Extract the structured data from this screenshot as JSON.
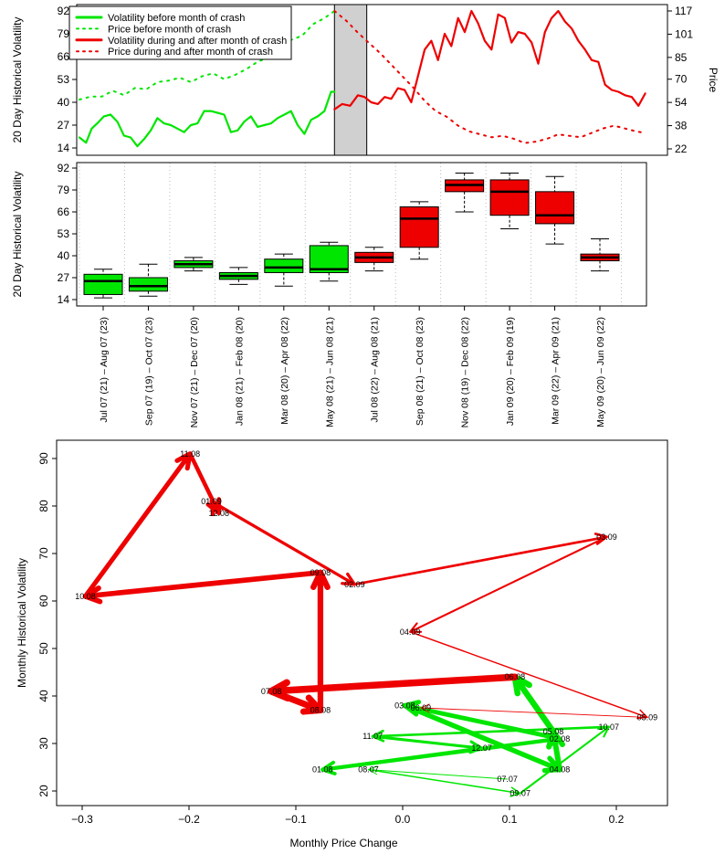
{
  "colors": {
    "before": "#00e600",
    "after": "#ee0000",
    "axis": "#000000",
    "grid": "#bbbbbb",
    "shade": "#d0d0d0"
  },
  "chart_data": [
    {
      "type": "line",
      "ylabel": "20 Day Historical Volatility",
      "y2label": "Price",
      "ylim": [
        14,
        92
      ],
      "y_ticks": [
        14,
        27,
        40,
        53,
        66,
        79,
        92
      ],
      "y2lim": [
        22,
        117
      ],
      "y2_ticks": [
        22,
        38,
        54,
        70,
        85,
        101,
        117
      ],
      "x_range_days": [
        0,
        510
      ],
      "crash_window": [
        229,
        258
      ],
      "legend_position": "top-left",
      "legend": [
        {
          "label": "Volatility before month of crash",
          "style": "solid",
          "color": "before"
        },
        {
          "label": "Price before month of crash",
          "style": "dotted",
          "color": "before"
        },
        {
          "label": "Volatility during and after month of crash",
          "style": "solid",
          "color": "after"
        },
        {
          "label": "Price during and after month of crash",
          "style": "dotted",
          "color": "after"
        }
      ],
      "series": [
        {
          "name": "Volatility before month of crash",
          "style": "solid",
          "color": "before",
          "x": [
            0,
            6,
            11,
            16,
            22,
            28,
            34,
            40,
            46,
            52,
            58,
            64,
            70,
            76,
            82,
            88,
            94,
            100,
            106,
            112,
            118,
            124,
            130,
            136,
            142,
            148,
            154,
            160,
            166,
            172,
            178,
            184,
            190,
            196,
            202,
            208,
            214,
            220,
            226,
            229
          ],
          "y": [
            20,
            17,
            25,
            28,
            32,
            33,
            29,
            21,
            20,
            15,
            19,
            24,
            31,
            28,
            27,
            25,
            23,
            27,
            28,
            35,
            35,
            34,
            33,
            23,
            24,
            29,
            32,
            26,
            27,
            28,
            31,
            33,
            35,
            27,
            22,
            30,
            32,
            35,
            46,
            46
          ]
        },
        {
          "name": "Price before month of crash",
          "style": "dotted",
          "color": "before",
          "x": [
            0,
            10,
            20,
            30,
            40,
            50,
            60,
            70,
            80,
            90,
            100,
            110,
            120,
            130,
            140,
            150,
            160,
            170,
            180,
            190,
            200,
            210,
            220,
            229
          ],
          "y": [
            56,
            58,
            58,
            62,
            59,
            64,
            63,
            68,
            69,
            71,
            68,
            72,
            74,
            70,
            73,
            77,
            82,
            85,
            92,
            97,
            100,
            108,
            112,
            117
          ]
        },
        {
          "name": "Volatility during and after month of crash",
          "style": "solid",
          "color": "after",
          "x": [
            229,
            236,
            243,
            250,
            256,
            262,
            268,
            274,
            280,
            286,
            292,
            298,
            304,
            310,
            316,
            322,
            328,
            334,
            340,
            346,
            352,
            358,
            364,
            370,
            376,
            382,
            388,
            394,
            400,
            406,
            412,
            418,
            424,
            430,
            436,
            442,
            448,
            454,
            460,
            466,
            472,
            478,
            484,
            490,
            496,
            502,
            508
          ],
          "y": [
            36,
            39,
            38,
            44,
            43,
            40,
            39,
            43,
            42,
            48,
            47,
            40,
            55,
            70,
            75,
            64,
            79,
            72,
            88,
            80,
            92,
            85,
            75,
            70,
            90,
            88,
            74,
            80,
            79,
            74,
            62,
            80,
            88,
            92,
            86,
            82,
            75,
            70,
            64,
            63,
            50,
            47,
            46,
            44,
            43,
            38,
            45
          ]
        },
        {
          "name": "Price during and after month of crash",
          "style": "dotted",
          "color": "after",
          "x": [
            229,
            240,
            250,
            260,
            270,
            280,
            290,
            300,
            310,
            320,
            330,
            340,
            350,
            360,
            370,
            380,
            390,
            400,
            410,
            420,
            430,
            440,
            450,
            460,
            470,
            480,
            490,
            500,
            508
          ],
          "y": [
            117,
            110,
            102,
            95,
            88,
            80,
            72,
            64,
            55,
            48,
            44,
            38,
            34,
            32,
            30,
            31,
            29,
            26,
            27,
            29,
            32,
            31,
            30,
            33,
            36,
            38,
            36,
            34,
            33
          ]
        }
      ]
    },
    {
      "type": "boxplot",
      "ylabel": "20 Day Historical Volatility",
      "ylim": [
        14,
        92
      ],
      "y_ticks": [
        14,
        27,
        40,
        53,
        66,
        79,
        92
      ],
      "categories": [
        "Jul 07 (21) – Aug 07 (23)",
        "Sep 07 (19) – Oct 07 (23)",
        "Nov 07 (21) – Dec 07 (20)",
        "Jan 08 (21) – Feb 08 (20)",
        "Mar 08 (20) – Apr 08 (22)",
        "May 08 (21) – Jun 08 (21)",
        "Jul 08 (22) – Aug 08 (21)",
        "Sep 08 (21) – Oct 08 (23)",
        "Nov 08 (19) – Dec 08 (22)",
        "Jan 09 (20) – Feb 09 (19)",
        "Mar 09 (22) – Apr 09 (21)",
        "May 09 (20) – Jun 09 (22)"
      ],
      "boxes": [
        {
          "min": 15,
          "q1": 17,
          "median": 25,
          "q3": 29,
          "max": 32,
          "color": "before"
        },
        {
          "min": 16,
          "q1": 19,
          "median": 22,
          "q3": 27,
          "max": 35,
          "color": "before"
        },
        {
          "min": 31,
          "q1": 33,
          "median": 35,
          "q3": 37,
          "max": 39,
          "color": "before"
        },
        {
          "min": 23,
          "q1": 26,
          "median": 28,
          "q3": 30,
          "max": 33,
          "color": "before"
        },
        {
          "min": 22,
          "q1": 30,
          "median": 33,
          "q3": 38,
          "max": 41,
          "color": "before"
        },
        {
          "min": 25,
          "q1": 30,
          "median": 32,
          "q3": 46,
          "max": 48,
          "color": "before"
        },
        {
          "min": 31,
          "q1": 36,
          "median": 39,
          "q3": 42,
          "max": 45,
          "color": "after"
        },
        {
          "min": 38,
          "q1": 45,
          "median": 62,
          "q3": 69,
          "max": 72,
          "color": "after"
        },
        {
          "min": 66,
          "q1": 78,
          "median": 82,
          "q3": 85,
          "max": 89,
          "color": "after"
        },
        {
          "min": 56,
          "q1": 64,
          "median": 78,
          "q3": 85,
          "max": 89,
          "color": "after"
        },
        {
          "min": 47,
          "q1": 59,
          "median": 64,
          "q3": 78,
          "max": 87,
          "color": "after"
        },
        {
          "min": 31,
          "q1": 37,
          "median": 39,
          "q3": 41,
          "max": 50,
          "color": "after"
        }
      ]
    },
    {
      "type": "scatter",
      "xlabel": "Monthly Price Change",
      "ylabel": "Monthly Historical Volatility",
      "xlim": [
        -0.32,
        0.25
      ],
      "ylim": [
        18,
        93
      ],
      "x_ticks": [
        -0.3,
        -0.2,
        -0.1,
        0.0,
        0.1,
        0.2
      ],
      "x_tick_labels": [
        "−0.3",
        "−0.2",
        "−0.1",
        "0.0",
        "0.1",
        "0.2"
      ],
      "y_ticks": [
        20,
        30,
        40,
        50,
        60,
        70,
        80,
        90
      ],
      "points": [
        {
          "label": "07.07",
          "x": 0.098,
          "y": 22.5
        },
        {
          "label": "08.07",
          "x": -0.032,
          "y": 24.5
        },
        {
          "label": "09.07",
          "x": 0.11,
          "y": 19.5
        },
        {
          "label": "10.07",
          "x": 0.193,
          "y": 33.5
        },
        {
          "label": "11.07",
          "x": -0.028,
          "y": 31.5
        },
        {
          "label": "12.07",
          "x": 0.074,
          "y": 29.0
        },
        {
          "label": "01.08",
          "x": -0.075,
          "y": 24.5
        },
        {
          "label": "02.08",
          "x": 0.147,
          "y": 31.0
        },
        {
          "label": "03.08",
          "x": 0.002,
          "y": 38.0
        },
        {
          "label": "04.08",
          "x": 0.147,
          "y": 24.5
        },
        {
          "label": "05.08",
          "x": 0.141,
          "y": 32.5
        },
        {
          "label": "06.08",
          "x": 0.105,
          "y": 44.0
        },
        {
          "label": "07.08",
          "x": -0.123,
          "y": 41.0
        },
        {
          "label": "08.08",
          "x": -0.077,
          "y": 37.0
        },
        {
          "label": "09.08",
          "x": -0.077,
          "y": 66.0
        },
        {
          "label": "10.08",
          "x": -0.297,
          "y": 61.0
        },
        {
          "label": "11.08",
          "x": -0.199,
          "y": 91.0
        },
        {
          "label": "12.08",
          "x": -0.172,
          "y": 78.5
        },
        {
          "label": "01.09",
          "x": -0.179,
          "y": 81.0
        },
        {
          "label": "02.09",
          "x": -0.045,
          "y": 63.5
        },
        {
          "label": "03.09",
          "x": 0.191,
          "y": 73.5
        },
        {
          "label": "04.09",
          "x": 0.007,
          "y": 53.5
        },
        {
          "label": "05.09",
          "x": 0.229,
          "y": 35.5
        },
        {
          "label": "06.09",
          "x": 0.017,
          "y": 37.5
        }
      ],
      "path_order": [
        "07.07",
        "08.07",
        "09.07",
        "10.07",
        "11.07",
        "12.07",
        "01.08",
        "02.08",
        "03.08",
        "04.08",
        "05.08",
        "06.08",
        "07.08",
        "08.08",
        "09.08",
        "10.08",
        "11.08",
        "12.08",
        "01.09",
        "02.09",
        "03.09",
        "04.09",
        "05.09",
        "06.09"
      ],
      "before_segments": 11,
      "after_segments": 12
    }
  ]
}
